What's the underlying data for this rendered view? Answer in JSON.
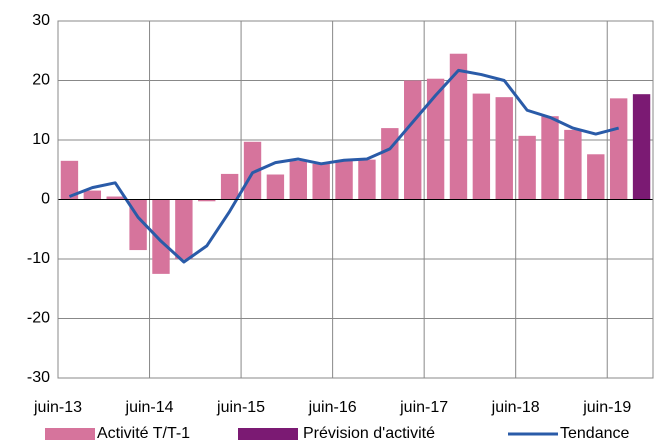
{
  "chart_data": {
    "type": "bar",
    "categories": [
      "juin-13",
      null,
      null,
      null,
      "juin-14",
      null,
      null,
      null,
      "juin-15",
      null,
      null,
      null,
      "juin-16",
      null,
      null,
      null,
      "juin-17",
      null,
      null,
      null,
      "juin-18",
      null,
      null,
      null,
      "juin-19",
      null
    ],
    "series": [
      {
        "name": "Activité T/T-1",
        "type": "bar",
        "color": "#d6749c",
        "values": [
          6.5,
          1.5,
          0.5,
          -8.5,
          -12.5,
          -10,
          -0.3,
          4.3,
          9.7,
          4.2,
          6.5,
          6,
          6.5,
          6.7,
          12,
          20,
          20.3,
          24.5,
          17.8,
          17.2,
          10.7,
          14,
          11.7,
          7.6,
          17,
          null
        ]
      },
      {
        "name": "Prévision d'activité",
        "type": "bar",
        "color": "#7b1a73",
        "values": [
          null,
          null,
          null,
          null,
          null,
          null,
          null,
          null,
          null,
          null,
          null,
          null,
          null,
          null,
          null,
          null,
          null,
          null,
          null,
          null,
          null,
          null,
          null,
          null,
          null,
          17.7
        ]
      },
      {
        "name": "Tendance",
        "type": "line",
        "color": "#2a5ba8",
        "values": [
          0.5,
          2,
          2.8,
          -3,
          -7,
          -10.5,
          -7.8,
          -2,
          4.5,
          6.2,
          6.8,
          6,
          6.6,
          6.8,
          8.5,
          13,
          17.5,
          21.7,
          21,
          20,
          15,
          13.8,
          12,
          11,
          12,
          null
        ]
      }
    ],
    "ylim": [
      -30,
      30
    ],
    "yticks": [
      -30,
      -20,
      -10,
      0,
      10,
      20,
      30
    ],
    "grid": true
  }
}
